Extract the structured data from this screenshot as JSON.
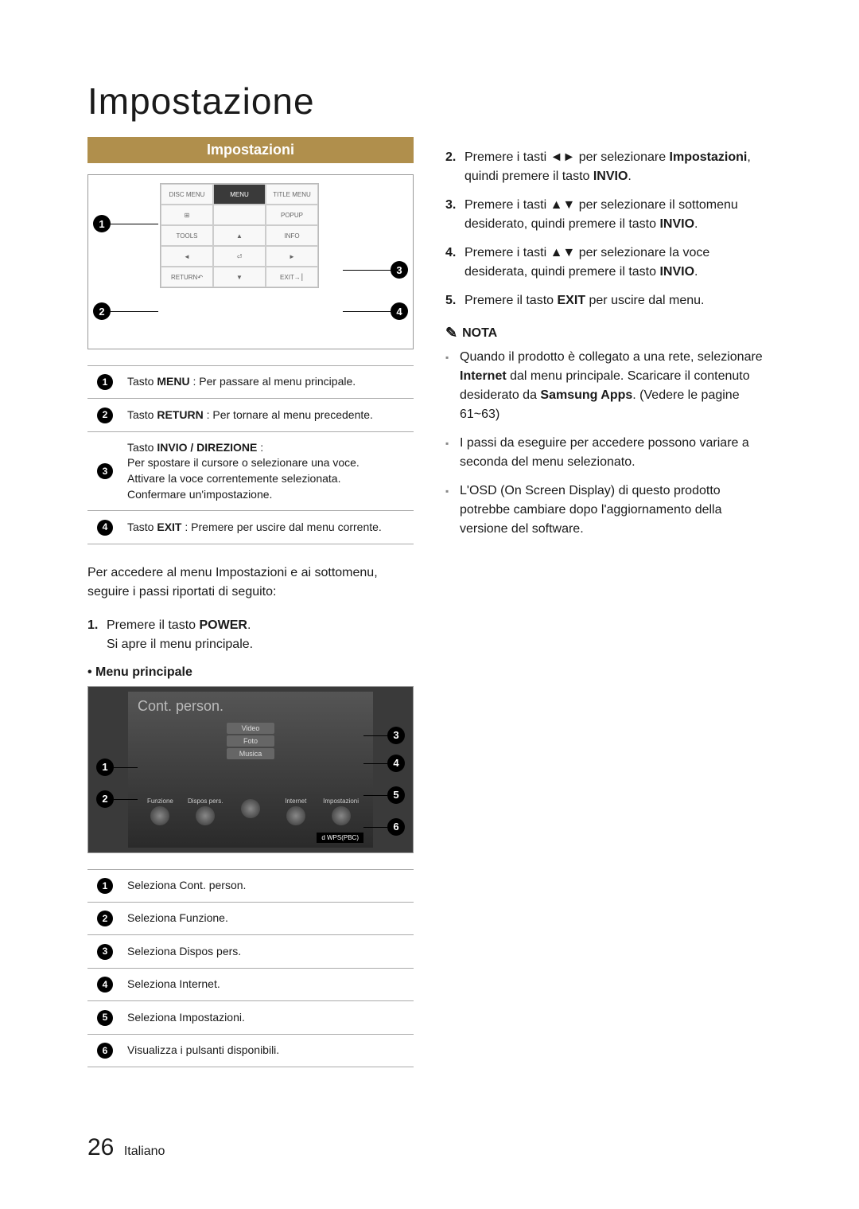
{
  "page": {
    "title": "Impostazione",
    "number": "26",
    "language": "Italiano"
  },
  "section_header": "Impostazioni",
  "remote": {
    "labels": {
      "disc_menu": "DISC MENU",
      "menu": "MENU",
      "title_menu": "TITLE MENU",
      "popup": "POPUP",
      "tools": "TOOLS",
      "info": "INFO",
      "return": "RETURN",
      "exit": "EXIT"
    },
    "callouts": [
      "1",
      "2",
      "3",
      "4"
    ]
  },
  "remote_table": [
    {
      "n": "1",
      "html": "Tasto <b>MENU</b> : Per passare al menu principale."
    },
    {
      "n": "2",
      "html": "Tasto <b>RETURN</b> : Per tornare al menu precedente."
    },
    {
      "n": "3",
      "html": "Tasto <b>INVIO / DIREZIONE</b> :<br>Per spostare il cursore o selezionare una voce.<br>Attivare la voce correntemente selezionata.<br>Confermare un'impostazione."
    },
    {
      "n": "4",
      "html": "Tasto <b>EXIT</b> : Premere per uscire dal menu corrente."
    }
  ],
  "intro_text": "Per accedere al menu Impostazioni e ai sottomenu, seguire i passi riportati di seguito:",
  "steps_left": [
    {
      "n": "1.",
      "html": "Premere il tasto <b>POWER</b>.<br>Si apre il menu principale."
    }
  ],
  "menu_principale_label": "• Menu principale",
  "menu_screen": {
    "title": "Cont. person.",
    "stack": [
      "Video",
      "Foto",
      "Musica"
    ],
    "icons": [
      "Funzione",
      "Dispos pers.",
      "",
      "Internet",
      "Impostazioni"
    ],
    "wps": "d WPS(PBC)",
    "callouts": [
      "1",
      "2",
      "3",
      "4",
      "5",
      "6"
    ]
  },
  "menu_table": [
    {
      "n": "1",
      "text": "Seleziona Cont. person."
    },
    {
      "n": "2",
      "text": "Seleziona Funzione."
    },
    {
      "n": "3",
      "text": "Seleziona Dispos pers."
    },
    {
      "n": "4",
      "text": "Seleziona Internet."
    },
    {
      "n": "5",
      "text": "Seleziona Impostazioni."
    },
    {
      "n": "6",
      "text": "Visualizza i pulsanti disponibili."
    }
  ],
  "steps_right": [
    {
      "n": "2.",
      "html": "Premere i tasti ◄► per selezionare <b>Impostazioni</b>, quindi premere il tasto <b>INVIO</b>."
    },
    {
      "n": "3.",
      "html": "Premere i tasti ▲▼ per selezionare il sottomenu desiderato, quindi premere il tasto <b>INVIO</b>."
    },
    {
      "n": "4.",
      "html": "Premere i tasti ▲▼ per selezionare la voce desiderata, quindi premere il tasto <b>INVIO</b>."
    },
    {
      "n": "5.",
      "html": "Premere il tasto <b>EXIT</b> per uscire dal menu."
    }
  ],
  "nota_label": "NOTA",
  "notes": [
    "Quando il prodotto è collegato a una rete, selezionare <b>Internet</b> dal menu principale. Scaricare il contenuto desiderato da <b>Samsung Apps</b>. (Vedere le pagine 61~63)",
    "I passi da eseguire per accedere possono variare a seconda del menu selezionato.",
    "L'OSD (On Screen Display) di questo prodotto potrebbe cambiare dopo l'aggiornamento della versione del software."
  ],
  "colors": {
    "header_bg": "#b08f4c",
    "header_text": "#ffffff",
    "badge_bg": "#000000",
    "badge_text": "#ffffff",
    "border": "#aaaaaa"
  }
}
